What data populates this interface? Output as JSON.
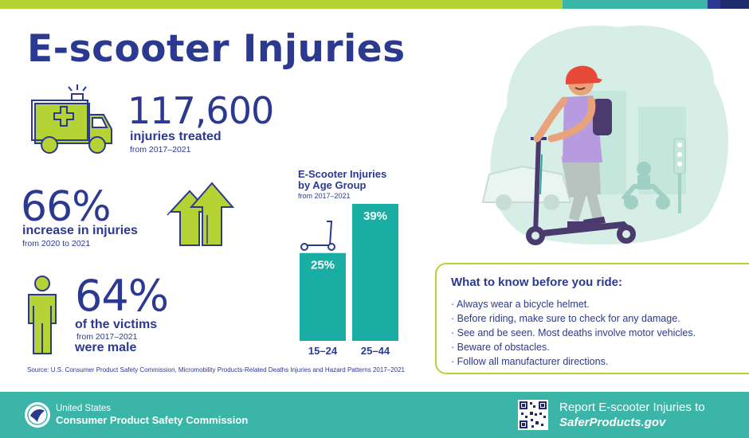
{
  "colors": {
    "navy": "#2b3990",
    "lime": "#b5d334",
    "teal": "#3ab5a8",
    "bar": "#1aada3",
    "mint": "#d6eee6"
  },
  "title": "E-scooter Injuries",
  "stats": {
    "injuries": {
      "number": "117,600",
      "label": "injuries treated",
      "sub": "from 2017–2021",
      "icon": "ambulance-icon"
    },
    "increase": {
      "number": "66%",
      "label": "increase in injuries",
      "sub": "from 2020 to 2021",
      "icon": "up-arrows-icon"
    },
    "male": {
      "number": "64%",
      "label": "of the victims",
      "sub": "from 2017–2021",
      "label2": "were male",
      "icon": "person-icon"
    }
  },
  "chart_data": {
    "type": "bar",
    "title": "E-Scooter Injuries by Age Group",
    "subtitle": "from 2017–2021",
    "categories": [
      "15–24",
      "25–44"
    ],
    "values": [
      25,
      39
    ],
    "value_labels": [
      "25%",
      "39%"
    ],
    "unit": "%",
    "ylim": [
      0,
      39
    ],
    "grid": false
  },
  "source": "Source: U.S. Consumer Product Safety Commission, Micromobility Products-Related Deaths Injuries and Hazard Patterns 2017–2021",
  "tips": {
    "heading": "What to know before you ride:",
    "items": [
      "· Always wear a bicycle helmet.",
      "· Before riding, make sure to check for any damage.",
      "· See and be seen. Most deaths involve motor vehicles.",
      "· Beware of obstacles.",
      "· Follow all manufacturer directions."
    ]
  },
  "footer": {
    "agency_top": "United States",
    "agency": "Consumer Product Safety Commission",
    "report_line1": "Report E-scooter Injuries to",
    "report_line2": "SaferProducts.gov"
  }
}
